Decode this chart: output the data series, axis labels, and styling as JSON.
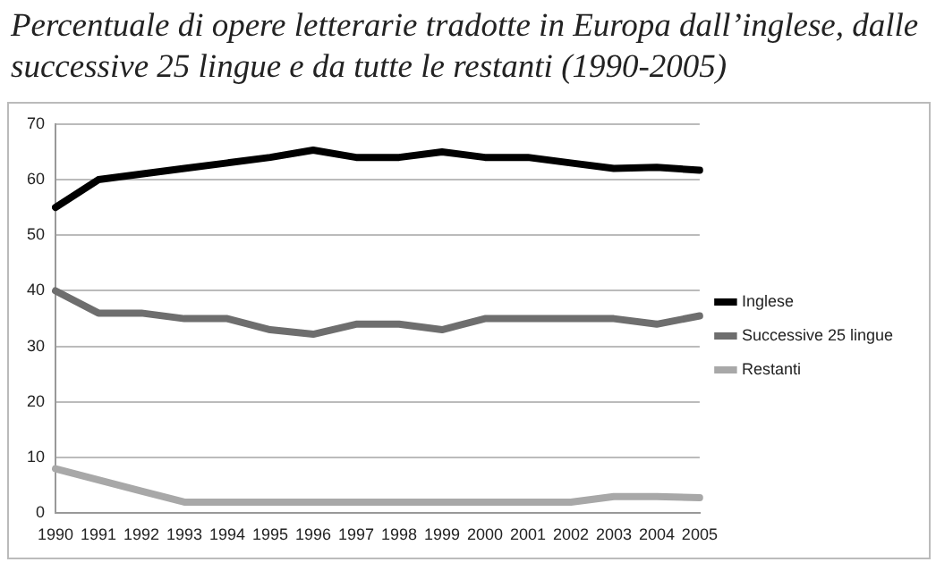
{
  "chart_data": {
    "type": "line",
    "title": "Percentuale di opere letterarie tradotte in Europa dall’inglese, dalle successive 25 lingue e da tutte le restanti (1990-2005)",
    "categories": [
      "1990",
      "1991",
      "1992",
      "1993",
      "1994",
      "1995",
      "1996",
      "1997",
      "1998",
      "1999",
      "2000",
      "2001",
      "2002",
      "2003",
      "2004",
      "2005"
    ],
    "series": [
      {
        "name": "Inglese",
        "color": "#000000",
        "values": [
          55,
          60,
          61,
          62,
          63,
          64,
          65.3,
          64,
          64,
          65,
          64,
          64,
          63,
          62,
          62.2,
          61.7
        ]
      },
      {
        "name": "Successive 25 lingue",
        "color": "#6e6e6e",
        "values": [
          40,
          36,
          36,
          35,
          35,
          33,
          32.2,
          34,
          34,
          33,
          35,
          35,
          35,
          35,
          34,
          35.5
        ]
      },
      {
        "name": "Restanti",
        "color": "#a8a8a8",
        "values": [
          8,
          6,
          4,
          2,
          2,
          2,
          2,
          2,
          2,
          2,
          2,
          2,
          2,
          3,
          3,
          2.8
        ]
      }
    ],
    "ylim": [
      0,
      70
    ],
    "yticks": [
      0,
      10,
      20,
      30,
      40,
      50,
      60,
      70
    ],
    "grid": "y",
    "legend": "right",
    "marker": "none",
    "line_style": "solid"
  }
}
